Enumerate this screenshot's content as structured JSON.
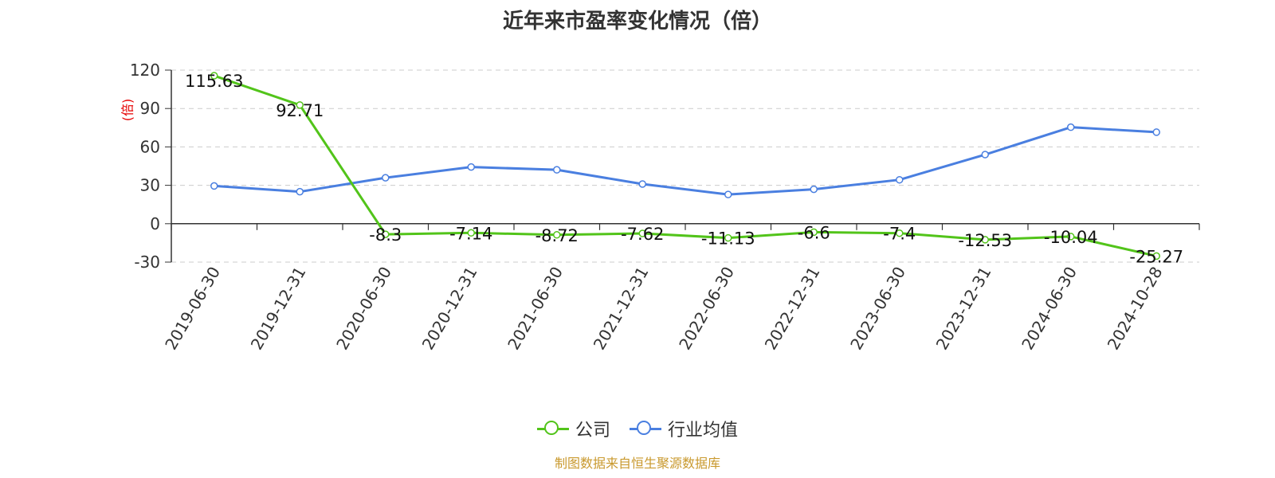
{
  "chart_data": {
    "type": "line",
    "title": "近年来市盈率变化情况（倍）",
    "ylabel": "(倍)",
    "categories": [
      "2019-06-30",
      "2019-12-31",
      "2020-06-30",
      "2020-12-31",
      "2021-06-30",
      "2021-12-31",
      "2022-06-30",
      "2022-12-31",
      "2023-06-30",
      "2023-12-31",
      "2024-06-30",
      "2024-10-28"
    ],
    "series": [
      {
        "name": "公司",
        "color": "#52c41a",
        "values": [
          115.63,
          92.71,
          -8.3,
          -7.14,
          -8.72,
          -7.62,
          -11.13,
          -6.6,
          -7.4,
          -12.53,
          -10.04,
          -25.27
        ],
        "labels": [
          "115.63",
          "92.71",
          "-8.3",
          "-7.14",
          "-8.72",
          "-7.62",
          "-11.13",
          "-6.6",
          "-7.4",
          "-12.53",
          "-10.04",
          "-25.27"
        ]
      },
      {
        "name": "行业均值",
        "color": "#4a7fe0",
        "values": [
          29.5,
          25.0,
          35.9,
          44.3,
          42.1,
          31.0,
          22.8,
          26.9,
          34.3,
          54.0,
          75.4,
          71.5
        ]
      }
    ],
    "ylim": [
      -30,
      120
    ],
    "yticks": [
      120,
      90,
      60,
      30,
      0,
      -30
    ],
    "grid": true,
    "legend_position": "bottom"
  },
  "source": "制图数据来自恒生聚源数据库"
}
